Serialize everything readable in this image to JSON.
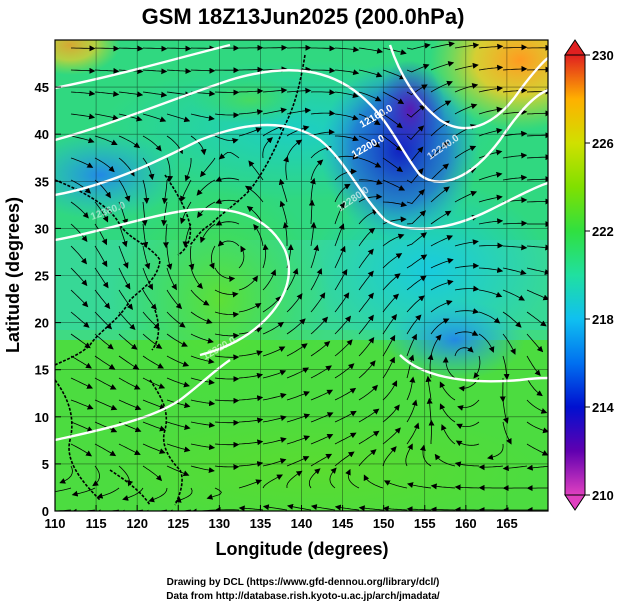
{
  "title": "GSM 18Z13Jun2025 (200.0hPa)",
  "x_axis": {
    "label": "Longitude (degrees)",
    "ticks": [
      "110",
      "115",
      "120",
      "125",
      "130",
      "135",
      "140",
      "145",
      "150",
      "155",
      "160",
      "165"
    ],
    "range": [
      110,
      170
    ]
  },
  "y_axis": {
    "label": "Latitude (degrees)",
    "ticks": [
      "0",
      "5",
      "10",
      "15",
      "20",
      "25",
      "30",
      "35",
      "40",
      "45"
    ],
    "range": [
      0,
      50
    ]
  },
  "colorbar": {
    "ticks": [
      "210",
      "214",
      "218",
      "222",
      "226",
      "230"
    ],
    "range": [
      210,
      230
    ],
    "colors": [
      "#e040c0",
      "#6000b0",
      "#0010d0",
      "#0070f0",
      "#10c0f0",
      "#20e0a0",
      "#30e040",
      "#80e000",
      "#d0e000",
      "#ffb000",
      "#ff5000",
      "#e02020"
    ]
  },
  "contour_labels": [
    "12160.0",
    "12200.0",
    "12240.0",
    "12280.0",
    "12320.0",
    "12360.0"
  ],
  "credits": [
    "Drawing by DCL (https://www.gfd-dennou.org/library/dcl/)",
    "Data from http://database.rish.kyoto-u.ac.jp/arch/jmadata/"
  ]
}
